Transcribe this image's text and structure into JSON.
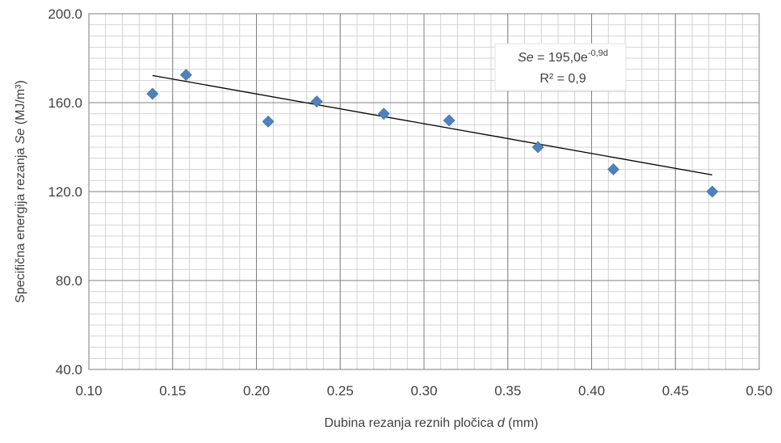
{
  "chart_data": {
    "type": "scatter",
    "xlabel_prefix": "Dubina rezanja reznih pločica ",
    "xlabel_var": "d",
    "xlabel_suffix": " (mm)",
    "ylabel_prefix": "Specifična energija rezanja  ",
    "ylabel_var": "Se",
    "ylabel_suffix": " (MJ/m³)",
    "xlim": [
      0.1,
      0.5
    ],
    "ylim": [
      40,
      200
    ],
    "x_ticks": [
      "0.10",
      "0.15",
      "0.20",
      "0.25",
      "0.30",
      "0.35",
      "0.40",
      "0.45",
      "0.50"
    ],
    "y_ticks": [
      "40.0",
      "80.0",
      "120.0",
      "160.0",
      "200.0"
    ],
    "grid": true,
    "series": [
      {
        "color": "#4f81bd",
        "marker": "diamond",
        "points": [
          {
            "x": 0.138,
            "y": 164
          },
          {
            "x": 0.158,
            "y": 172.5
          },
          {
            "x": 0.207,
            "y": 151.5
          },
          {
            "x": 0.236,
            "y": 160.5
          },
          {
            "x": 0.276,
            "y": 155
          },
          {
            "x": 0.315,
            "y": 152
          },
          {
            "x": 0.368,
            "y": 140
          },
          {
            "x": 0.413,
            "y": 130
          },
          {
            "x": 0.472,
            "y": 120
          }
        ]
      }
    ],
    "trendline": {
      "type": "exponential",
      "a": 195.0,
      "b": -0.9,
      "x_range": [
        0.138,
        0.472
      ],
      "color": "#000000"
    },
    "annotation": {
      "eq_var": "Se",
      "eq_mid": " = 195,0e",
      "eq_exp": "-0,9d",
      "r2_label": "R² = 0,9"
    }
  }
}
